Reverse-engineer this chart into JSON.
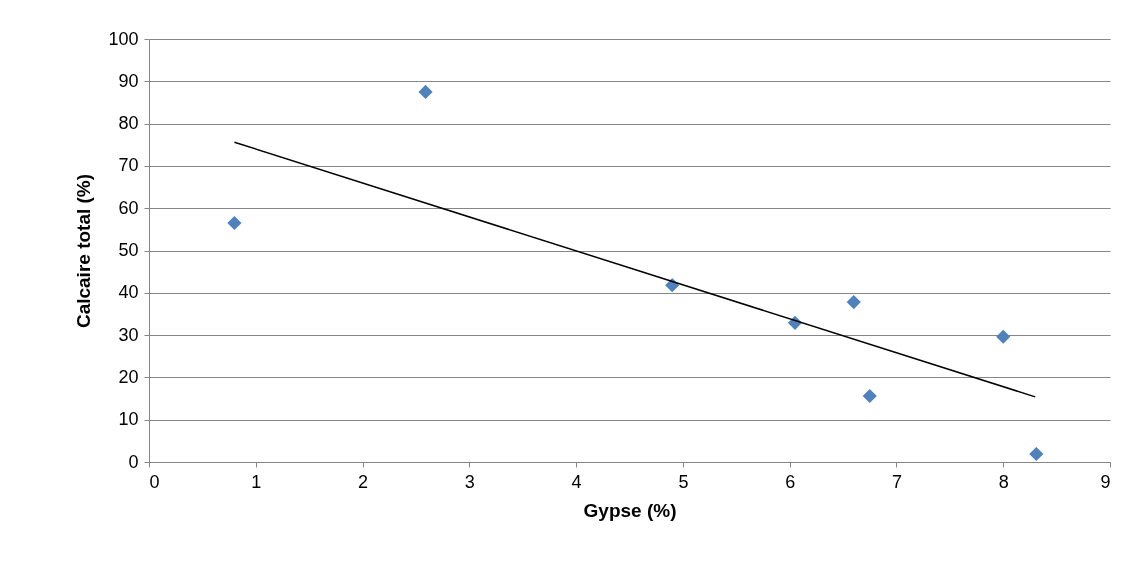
{
  "chart_data": {
    "type": "scatter",
    "xlabel": "Gypse (%)",
    "ylabel": "Calcaire total (%)",
    "xlim": [
      0,
      9
    ],
    "xticks": [
      0,
      1,
      2,
      3,
      4,
      5,
      6,
      7,
      8,
      9
    ],
    "ylim": [
      0,
      100
    ],
    "yticks": [
      0,
      10,
      20,
      30,
      40,
      50,
      60,
      70,
      80,
      90,
      100
    ],
    "grid": "y",
    "series": [
      {
        "marker": "diamond",
        "color": "#4f81bd",
        "x": [
          0.8,
          2.59,
          4.9,
          6.05,
          6.6,
          6.75,
          8.0,
          8.31
        ],
        "values": [
          56.5,
          87.5,
          41.8,
          32.9,
          37.8,
          15.6,
          29.6,
          1.9
        ]
      },
      {
        "type": "line",
        "color": "#000000",
        "x": [
          0.8,
          8.3
        ],
        "values": [
          75.6,
          15.4
        ]
      }
    ]
  }
}
